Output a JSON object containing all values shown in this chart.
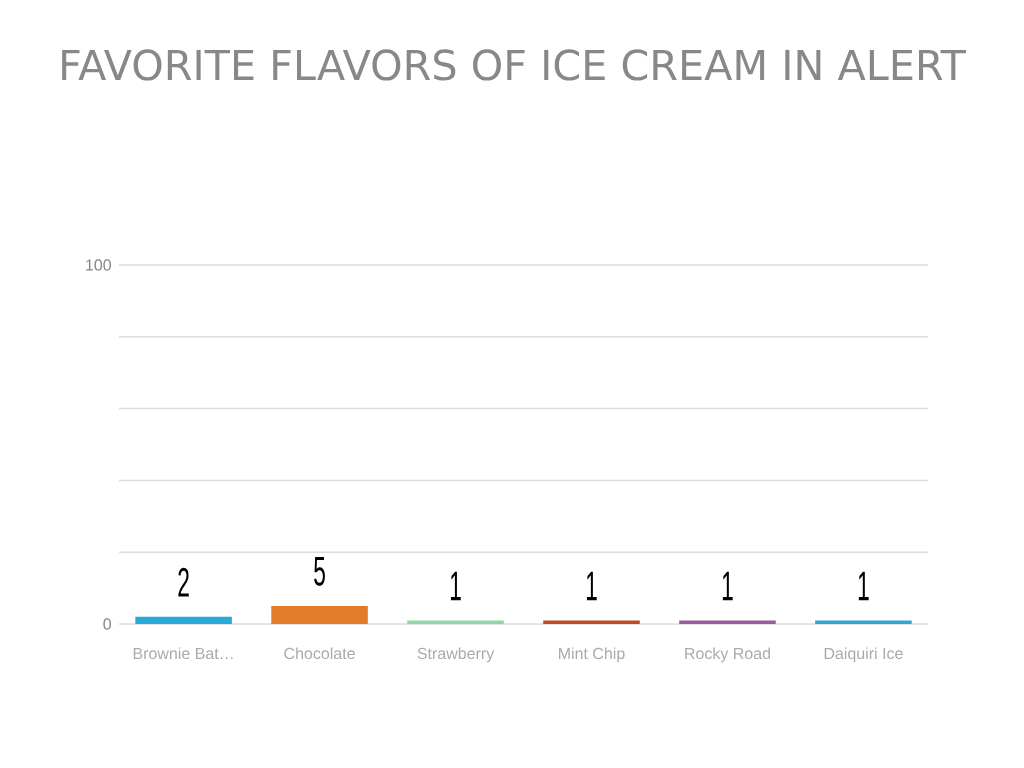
{
  "chart_data": {
    "type": "bar",
    "title": "FAVORITE FLAVORS OF ICE CREAM IN ALERT",
    "categories": [
      "Brownie Bat…",
      "Chocolate",
      "Strawberry",
      "Mint Chip",
      "Rocky Road",
      "Daiquiri Ice"
    ],
    "values": [
      2,
      5,
      1,
      1,
      1,
      1
    ],
    "colors": [
      "#2aa8d6",
      "#e37b2a",
      "#8fd6a8",
      "#c4482b",
      "#9a5c9c",
      "#2fa6d2"
    ],
    "ylim": [
      0,
      100
    ],
    "yticks": [
      0,
      {
        "value": 20,
        "label": null
      },
      {
        "value": 40,
        "label": null
      },
      {
        "value": 60,
        "label": null
      },
      {
        "value": 80,
        "label": null
      },
      100
    ],
    "grid": "y",
    "data_labels": true
  }
}
